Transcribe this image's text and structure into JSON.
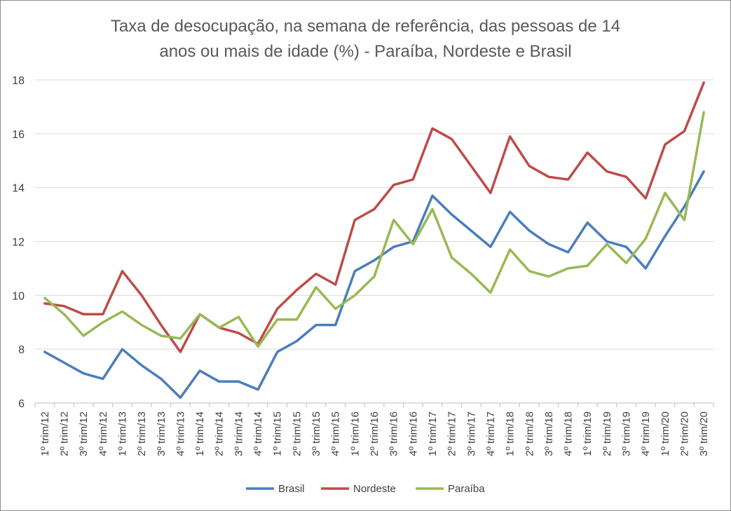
{
  "chart_data": {
    "type": "line",
    "title_lines": [
      "Taxa de desocupação, na semana de referência, das pessoas de 14",
      "anos ou mais de idade (%) - Paraíba, Nordeste e Brasil"
    ],
    "xlabel": "",
    "ylabel": "",
    "ylim": [
      6,
      18
    ],
    "yticks": [
      6,
      8,
      10,
      12,
      14,
      16,
      18
    ],
    "grid": true,
    "legend_position": "bottom",
    "categories": [
      "1º trim/12",
      "2º trim/12",
      "3º trim/12",
      "4º trim/12",
      "1º trim/13",
      "2º trim/13",
      "3º trim/13",
      "4º trim/13",
      "1º trim/14",
      "2º trim/14",
      "3º trim/14",
      "4º trim/14",
      "1º trim/15",
      "2º trim/15",
      "3º trim/15",
      "4º trim/15",
      "1º trim/16",
      "2º trim/16",
      "3º trim/16",
      "4º trim/16",
      "1º trim/17",
      "2º trim/17",
      "3º trim/17",
      "4º trim/17",
      "1º trim/18",
      "2º trim/18",
      "3º trim/18",
      "4º trim/18",
      "1º trim/19",
      "2º trim/19",
      "3º trim/19",
      "4º trim/19",
      "1º trim/20",
      "2º trim/20",
      "3º trim/20"
    ],
    "series": [
      {
        "name": "Brasil",
        "color": "#4a7ebb",
        "values": [
          7.9,
          7.5,
          7.1,
          6.9,
          8.0,
          7.4,
          6.9,
          6.2,
          7.2,
          6.8,
          6.8,
          6.5,
          7.9,
          8.3,
          8.9,
          8.9,
          10.9,
          11.3,
          11.8,
          12.0,
          13.7,
          13.0,
          12.4,
          11.8,
          13.1,
          12.4,
          11.9,
          11.6,
          12.7,
          12.0,
          11.8,
          11.0,
          12.2,
          13.3,
          14.6
        ]
      },
      {
        "name": "Nordeste",
        "color": "#be4b48",
        "values": [
          9.7,
          9.6,
          9.3,
          9.3,
          10.9,
          10.0,
          8.9,
          7.9,
          9.3,
          8.8,
          8.6,
          8.2,
          9.5,
          10.2,
          10.8,
          10.4,
          12.8,
          13.2,
          14.1,
          14.3,
          16.2,
          15.8,
          14.8,
          13.8,
          15.9,
          14.8,
          14.4,
          14.3,
          15.3,
          14.6,
          14.4,
          13.6,
          15.6,
          16.1,
          17.9
        ]
      },
      {
        "name": "Paraíba",
        "color": "#98b954",
        "values": [
          9.9,
          9.3,
          8.5,
          9.0,
          9.4,
          8.9,
          8.5,
          8.4,
          9.3,
          8.8,
          9.2,
          8.1,
          9.1,
          9.1,
          10.3,
          9.5,
          10.0,
          10.7,
          12.8,
          11.9,
          13.2,
          11.4,
          10.8,
          10.1,
          11.7,
          10.9,
          10.7,
          11.0,
          11.1,
          11.9,
          11.2,
          12.1,
          13.8,
          12.8,
          16.8
        ]
      }
    ]
  }
}
